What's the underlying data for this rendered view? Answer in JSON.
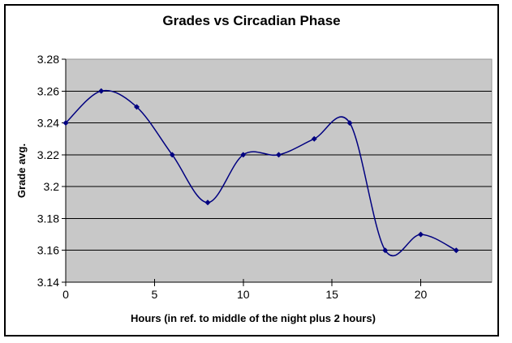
{
  "chart_data": {
    "type": "line",
    "title": "Grades vs Circadian Phase",
    "xlabel": "Hours (in ref. to middle of the night plus 2 hours)",
    "ylabel": "Grade avg.",
    "series": [
      {
        "name": "Grade avg.",
        "x": [
          0,
          2,
          4,
          6,
          8,
          10,
          12,
          14,
          16,
          18,
          20,
          22
        ],
        "y": [
          3.24,
          3.26,
          3.25,
          3.22,
          3.19,
          3.22,
          3.22,
          3.23,
          3.24,
          3.16,
          3.17,
          3.16
        ]
      }
    ],
    "xlim": [
      0,
      24
    ],
    "ylim": [
      3.14,
      3.28
    ],
    "xticks": [
      0,
      5,
      10,
      15,
      20
    ],
    "xtick_labels": [
      "0",
      "5",
      "10",
      "15",
      "20"
    ],
    "yticks": [
      3.14,
      3.16,
      3.18,
      3.2,
      3.22,
      3.24,
      3.26,
      3.28
    ],
    "ytick_labels": [
      "3.14",
      "3.16",
      "3.18",
      "3.2",
      "3.22",
      "3.24",
      "3.26",
      "3.28"
    ],
    "grid": true,
    "smooth": true,
    "marker": "diamond",
    "legend_position": "none",
    "colors": {
      "line": "#000080",
      "marker": "#000080",
      "plot_bg": "#c8c8c8",
      "plot_border": "#949494",
      "grid": "#000000",
      "axis": "#000000",
      "frame_border": "#000000",
      "text": "#000000"
    }
  }
}
